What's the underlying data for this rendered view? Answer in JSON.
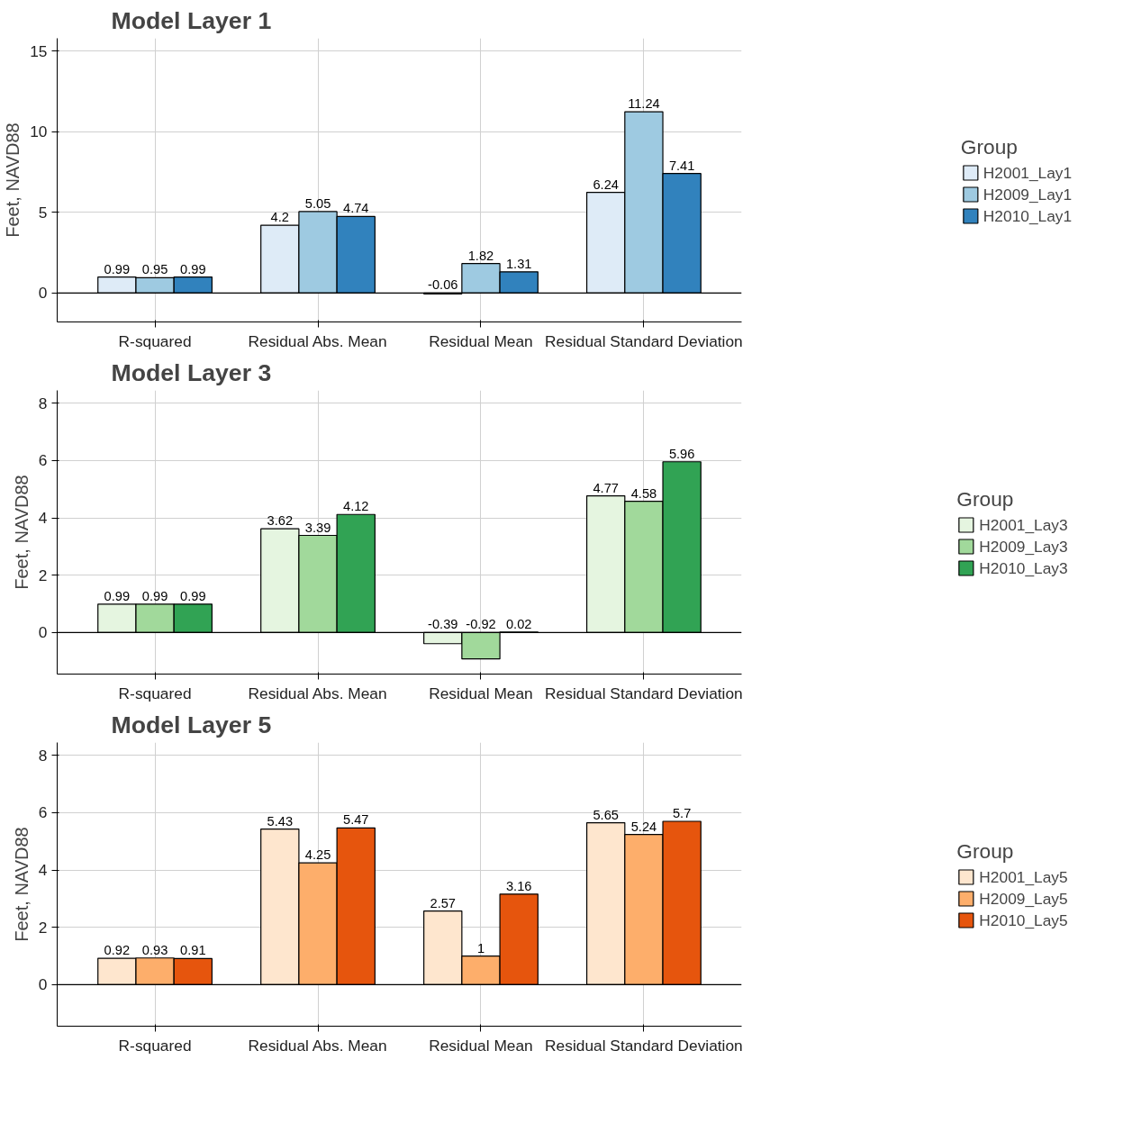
{
  "chart_data": [
    {
      "type": "bar",
      "title": "Model Layer 1",
      "ylabel": "Feet, NAVD88",
      "categories": [
        "R-squared",
        "Residual Abs. Mean",
        "Residual Mean",
        "Residual Standard Deviation"
      ],
      "series": [
        {
          "name": "H2001_Lay1",
          "color": "#deebf7",
          "values": [
            0.99,
            4.2,
            -0.06,
            6.24
          ]
        },
        {
          "name": "H2009_Lay1",
          "color": "#9ecae1",
          "values": [
            0.95,
            5.05,
            1.82,
            11.24
          ]
        },
        {
          "name": "H2010_Lay1",
          "color": "#3182bd",
          "values": [
            0.99,
            4.74,
            1.31,
            7.41
          ]
        }
      ],
      "ylim": [
        -1.8,
        15.8
      ],
      "yticks": [
        0,
        5,
        10,
        15
      ],
      "grid": true,
      "legend": "right",
      "legend_title": "Group",
      "data_labels": true
    },
    {
      "type": "bar",
      "title": "Model Layer 3",
      "ylabel": "Feet, NAVD88",
      "categories": [
        "R-squared",
        "Residual Abs. Mean",
        "Residual Mean",
        "Residual Standard Deviation"
      ],
      "series": [
        {
          "name": "H2001_Lay3",
          "color": "#e5f5e0",
          "values": [
            0.99,
            3.62,
            -0.39,
            4.77
          ]
        },
        {
          "name": "H2009_Lay3",
          "color": "#a1d99b",
          "values": [
            0.99,
            3.39,
            -0.92,
            4.58
          ]
        },
        {
          "name": "H2010_Lay3",
          "color": "#31a354",
          "values": [
            0.99,
            4.12,
            0.02,
            5.96
          ]
        }
      ],
      "ylim": [
        -1.45,
        8.45
      ],
      "yticks": [
        0,
        2,
        4,
        6,
        8
      ],
      "grid": true,
      "legend": "right",
      "legend_title": "Group",
      "data_labels": true
    },
    {
      "type": "bar",
      "title": "Model Layer 5",
      "ylabel": "Feet, NAVD88",
      "categories": [
        "R-squared",
        "Residual Abs. Mean",
        "Residual Mean",
        "Residual Standard Deviation"
      ],
      "series": [
        {
          "name": "H2001_Lay5",
          "color": "#fee6ce",
          "values": [
            0.92,
            5.43,
            2.57,
            5.65
          ]
        },
        {
          "name": "H2009_Lay5",
          "color": "#fdae6b",
          "values": [
            0.93,
            4.25,
            1,
            5.24
          ]
        },
        {
          "name": "H2010_Lay5",
          "color": "#e6550d",
          "values": [
            0.91,
            5.47,
            3.16,
            5.7
          ]
        }
      ],
      "ylim": [
        -1.45,
        8.45
      ],
      "yticks": [
        0,
        2,
        4,
        6,
        8
      ],
      "grid": true,
      "legend": "right",
      "legend_title": "Group",
      "data_labels": true
    }
  ]
}
